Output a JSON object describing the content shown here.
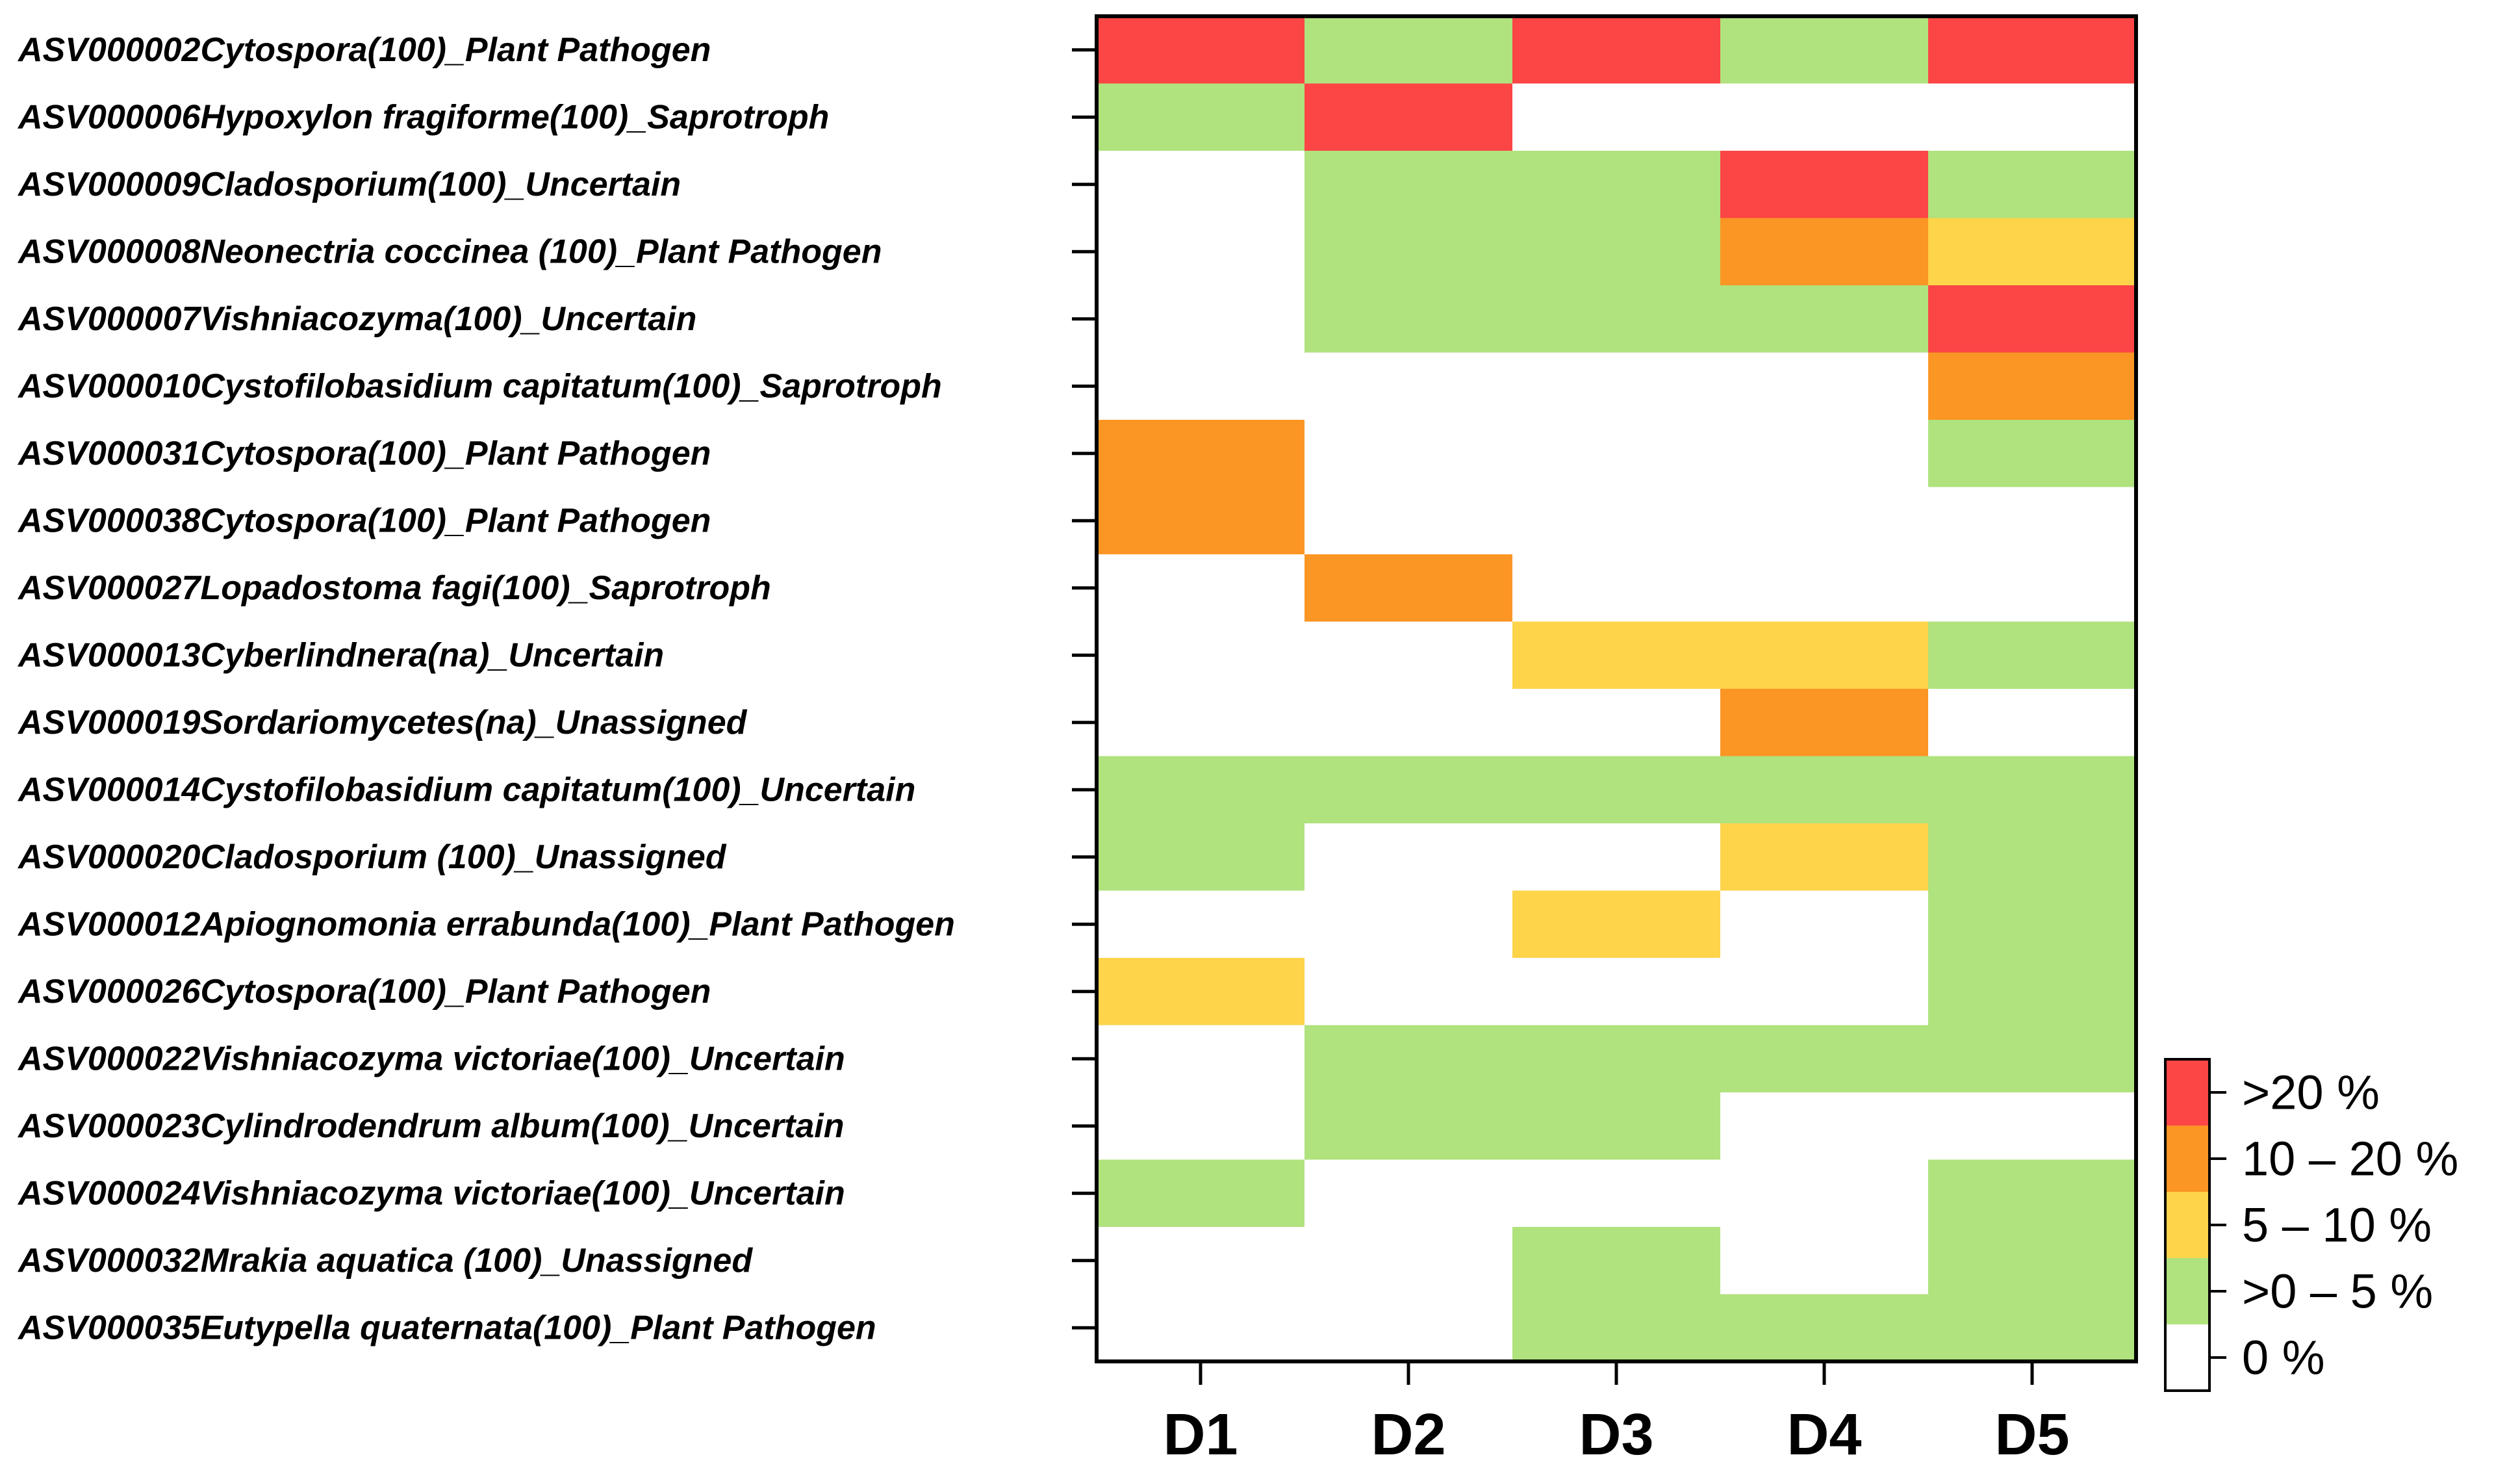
{
  "chart_data": {
    "type": "heatmap",
    "title": "",
    "xlabel": "",
    "ylabel": "",
    "columns": [
      "D1",
      "D2",
      "D3",
      "D4",
      "D5"
    ],
    "rows": [
      "ASV000002Cytospora(100)_Plant Pathogen",
      "ASV000006Hypoxylon fragiforme(100)_Saprotroph",
      "ASV000009Cladosporium(100)_Uncertain",
      "ASV000008Neonectria coccinea  (100)_Plant Pathogen",
      "ASV000007Vishniacozyma(100)_Uncertain",
      "ASV000010Cystofilobasidium capitatum(100)_Saprotroph",
      "ASV000031Cytospora(100)_Plant Pathogen",
      "ASV000038Cytospora(100)_Plant Pathogen",
      "ASV000027Lopadostoma fagi(100)_Saprotroph",
      "ASV000013Cyberlindnera(na)_Uncertain",
      "ASV000019Sordariomycetes(na)_Unassigned",
      "ASV000014Cystofilobasidium capitatum(100)_Uncertain",
      "ASV000020Cladosporium (100)_Unassigned",
      "ASV000012Apiognomonia errabunda(100)_Plant Pathogen",
      "ASV000026Cytospora(100)_Plant Pathogen",
      "ASV000022Vishniacozyma victoriae(100)_Uncertain",
      "ASV000023Cylindrodendrum album(100)_Uncertain",
      "ASV000024Vishniacozyma victoriae(100)_Uncertain",
      "ASV000032Mrakia aquatica (100)_Unassigned",
      "ASV000035Eutypella quaternata(100)_Plant Pathogen"
    ],
    "categories": [
      ">20 %",
      "10 – 20 %",
      "5 – 10 %",
      ">0 – 5 %",
      "0 %"
    ],
    "values": [
      [
        4,
        1,
        4,
        1,
        4
      ],
      [
        1,
        4,
        0,
        0,
        0
      ],
      [
        0,
        1,
        1,
        4,
        1
      ],
      [
        0,
        1,
        1,
        3,
        2
      ],
      [
        0,
        1,
        1,
        1,
        4
      ],
      [
        0,
        0,
        0,
        0,
        3
      ],
      [
        3,
        0,
        0,
        0,
        1
      ],
      [
        3,
        0,
        0,
        0,
        0
      ],
      [
        0,
        3,
        0,
        0,
        0
      ],
      [
        0,
        0,
        2,
        2,
        1
      ],
      [
        0,
        0,
        0,
        3,
        0
      ],
      [
        1,
        1,
        1,
        1,
        1
      ],
      [
        1,
        0,
        0,
        2,
        1
      ],
      [
        0,
        0,
        2,
        0,
        1
      ],
      [
        2,
        0,
        0,
        0,
        1
      ],
      [
        0,
        1,
        1,
        1,
        1
      ],
      [
        0,
        1,
        1,
        0,
        0
      ],
      [
        1,
        0,
        0,
        0,
        1
      ],
      [
        0,
        0,
        1,
        0,
        1
      ],
      [
        0,
        0,
        1,
        1,
        1
      ]
    ],
    "value_key": {
      "0": "0 %",
      "1": ">0 – 5 %",
      "2": "5 – 10 %",
      "3": "10 – 20 %",
      "4": ">20 %"
    },
    "colors": [
      "#ffffff",
      "#b0e27e",
      "#fdd44a",
      "#fb9524",
      "#fc4545"
    ],
    "legend": {
      "position": "bottom-right",
      "entries": [
        {
          "label": ">20 %",
          "color": "#fc4545"
        },
        {
          "label": "10 – 20 %",
          "color": "#fb9524"
        },
        {
          "label": "5 – 10 %",
          "color": "#fdd44a"
        },
        {
          "label": ">0 – 5 %",
          "color": "#b0e27e"
        },
        {
          "label": "0 %",
          "color": "#ffffff"
        }
      ]
    }
  }
}
